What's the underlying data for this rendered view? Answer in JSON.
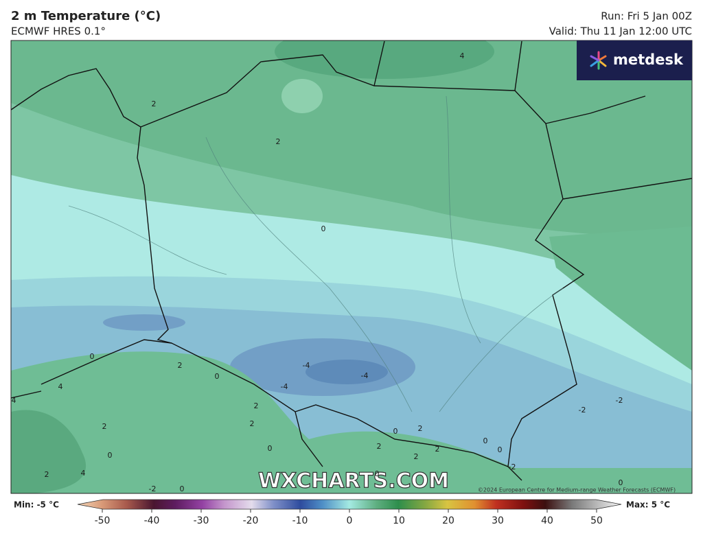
{
  "header": {
    "title": "2 m Temperature (°C)",
    "subtitle": "ECMWF HRES 0.1°",
    "run": "Run: Fri 5 Jan 00Z",
    "valid": "Valid: Thu 11 Jan 12:00 UTC"
  },
  "logo": "metdesk",
  "map": {
    "contour_labels": [
      4,
      2,
      2,
      0,
      0,
      2,
      0,
      -4,
      -4,
      4,
      -4,
      2,
      2,
      2,
      0,
      2,
      0,
      2,
      2,
      4,
      -2,
      -2,
      0,
      0,
      -2,
      0,
      0,
      -2,
      4,
      2,
      0,
      2,
      0
    ],
    "watermark": "WXCHARTS.COM",
    "copyright": "©2024 European Centre for Medium-range Weather Forecasts (ECMWF)"
  },
  "colorbar": {
    "min_label": "Min: -5 °C",
    "max_label": "Max: 5 °C",
    "range": [
      -55,
      55
    ],
    "ticks": [
      -50,
      -40,
      -30,
      -20,
      -10,
      0,
      10,
      20,
      30,
      40,
      50
    ]
  }
}
